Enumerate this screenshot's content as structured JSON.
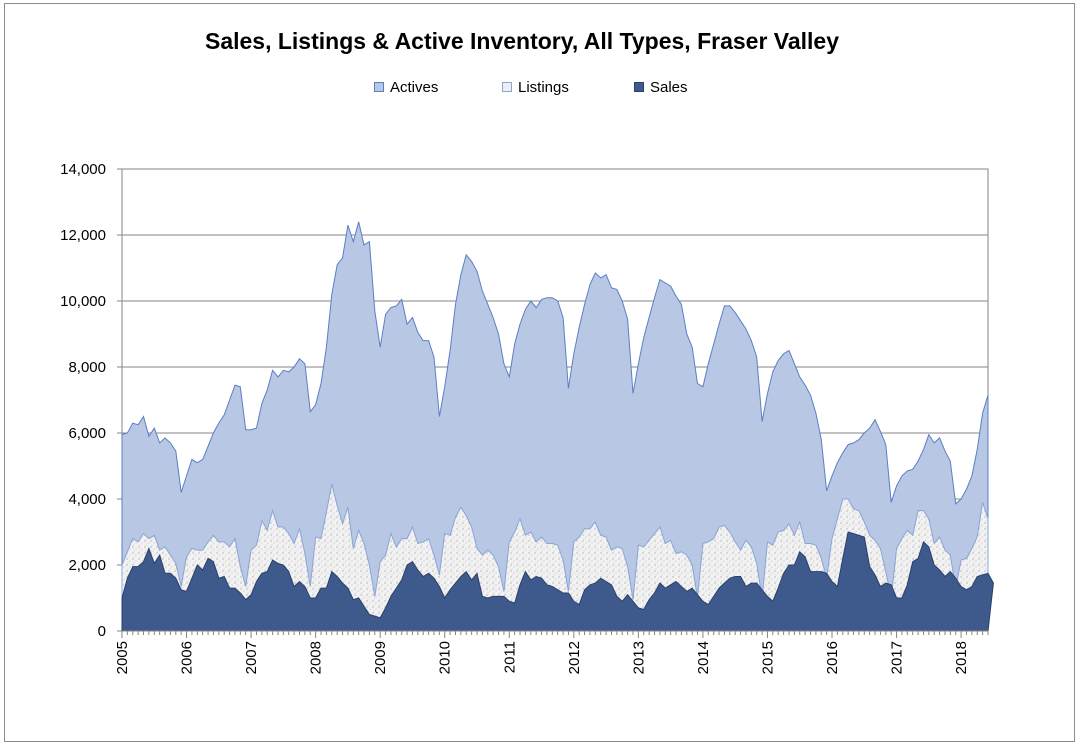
{
  "chart_data": {
    "type": "area",
    "title": "Sales, Listings & Active Inventory, All Types, Fraser Valley",
    "xlabel": "",
    "ylabel": "",
    "ylim": [
      0,
      14000
    ],
    "yticks": [
      "0",
      "2,000",
      "4,000",
      "6,000",
      "8,000",
      "10,000",
      "12,000",
      "14,000"
    ],
    "ytick_values": [
      0,
      2000,
      4000,
      6000,
      8000,
      10000,
      12000,
      14000
    ],
    "x_start": "2005-01",
    "x_end": "2018-06",
    "xticks": [
      "2005",
      "2006",
      "2007",
      "2008",
      "2009",
      "2010",
      "2011",
      "2012",
      "2013",
      "2014",
      "2015",
      "2016",
      "2017",
      "2018"
    ],
    "grid": "horizontal",
    "legend_position": "top",
    "legend": [
      {
        "key": "actives",
        "label": "Actives",
        "color": "#b8c7e4"
      },
      {
        "key": "listings",
        "label": "Listings",
        "color": "#eeeeee"
      },
      {
        "key": "sales",
        "label": "Sales",
        "color": "#3e5a8c"
      }
    ],
    "series": [
      {
        "name": "Actives",
        "color": "#b8c7e4",
        "stroke": "#5b7fc4",
        "values": [
          5950,
          6000,
          6300,
          6250,
          6500,
          5900,
          6150,
          5700,
          5850,
          5700,
          5450,
          4200,
          4700,
          5200,
          5100,
          5200,
          5600,
          6000,
          6300,
          6550,
          7000,
          7450,
          7400,
          6100,
          6100,
          6150,
          6900,
          7300,
          7900,
          7700,
          7900,
          7850,
          8000,
          8250,
          8100,
          6650,
          6850,
          7500,
          8600,
          10200,
          11100,
          11300,
          12300,
          11800,
          12400,
          11700,
          11800,
          9700,
          8600,
          9600,
          9800,
          9850,
          10050,
          9300,
          9500,
          9050,
          8800,
          8800,
          8300,
          6500,
          7400,
          8500,
          9900,
          10800,
          11400,
          11200,
          10900,
          10300,
          9900,
          9500,
          9000,
          8100,
          7700,
          8700,
          9300,
          9750,
          10000,
          9800,
          10050,
          10100,
          10100,
          10000,
          9500,
          7350,
          8400,
          9200,
          9900,
          10500,
          10850,
          10700,
          10800,
          10400,
          10350,
          10000,
          9450,
          7200,
          8100,
          8900,
          9500,
          10100,
          10650,
          10550,
          10450,
          10150,
          9900,
          9000,
          8600,
          7500,
          7400,
          8100,
          8700,
          9300,
          9850,
          9850,
          9650,
          9400,
          9150,
          8800,
          8300,
          6350,
          7200,
          7850,
          8200,
          8400,
          8500,
          8100,
          7700,
          7450,
          7150,
          6600,
          5800,
          4250,
          4700,
          5100,
          5400,
          5650,
          5700,
          5800,
          6000,
          6150,
          6400,
          6050,
          5650,
          3900,
          4400,
          4700,
          4850,
          4900,
          5150,
          5500,
          5950,
          5700,
          5850,
          5450,
          5150,
          3850,
          4000,
          4300,
          4700,
          5500,
          6600,
          7150
        ]
      },
      {
        "name": "Listings",
        "color": "#eeeeee",
        "stroke": "#8aa4d6",
        "values": [
          2000,
          2400,
          2800,
          2700,
          2950,
          2800,
          2900,
          2450,
          2550,
          2300,
          2050,
          1350,
          2250,
          2500,
          2450,
          2450,
          2700,
          2900,
          2700,
          2700,
          2550,
          2800,
          1950,
          1350,
          2450,
          2600,
          3350,
          3050,
          3650,
          3150,
          3150,
          2950,
          2650,
          3100,
          2350,
          1350,
          2850,
          2800,
          3600,
          4450,
          3800,
          3250,
          3750,
          2500,
          3050,
          2650,
          2000,
          1050,
          2100,
          2300,
          2950,
          2550,
          2800,
          2800,
          3150,
          2650,
          2700,
          2800,
          2300,
          1700,
          2950,
          2900,
          3450,
          3750,
          3500,
          3150,
          2500,
          2300,
          2450,
          2300,
          1950,
          1200,
          2700,
          3000,
          3400,
          2900,
          3000,
          2700,
          2850,
          2650,
          2650,
          2600,
          2150,
          1200,
          2700,
          2850,
          3100,
          3100,
          3300,
          2900,
          2850,
          2450,
          2550,
          2500,
          1950,
          950,
          2600,
          2550,
          2750,
          2950,
          3150,
          2650,
          2750,
          2350,
          2400,
          2300,
          2000,
          1000,
          2650,
          2700,
          2800,
          3150,
          3200,
          3000,
          2700,
          2450,
          2750,
          2550,
          2050,
          1000,
          2700,
          2600,
          3000,
          3050,
          3250,
          2900,
          3300,
          2650,
          2650,
          2600,
          2200,
          1600,
          2800,
          3400,
          4000,
          4000,
          3700,
          3650,
          3300,
          2900,
          2750,
          2500,
          1800,
          1000,
          2500,
          2800,
          3050,
          2900,
          3650,
          3650,
          3400,
          2650,
          2850,
          2450,
          2300,
          1300,
          2150,
          2200,
          2500,
          2850,
          3900,
          3400
        ]
      },
      {
        "name": "Sales",
        "color": "#3e5a8c",
        "stroke": "#2b3f69",
        "values": [
          1000,
          1600,
          1950,
          1950,
          2100,
          2500,
          2050,
          2300,
          1750,
          1750,
          1600,
          1250,
          1200,
          1600,
          2000,
          1850,
          2200,
          2100,
          1600,
          1650,
          1300,
          1300,
          1150,
          950,
          1100,
          1500,
          1750,
          1800,
          2150,
          2050,
          2000,
          1800,
          1350,
          1500,
          1350,
          1000,
          1000,
          1300,
          1300,
          1800,
          1650,
          1450,
          1300,
          950,
          1000,
          750,
          500,
          450,
          400,
          700,
          1050,
          1300,
          1550,
          2000,
          2100,
          1850,
          1650,
          1750,
          1600,
          1350,
          1000,
          1250,
          1450,
          1650,
          1800,
          1550,
          1750,
          1050,
          1000,
          1050,
          1050,
          1050,
          900,
          850,
          1400,
          1800,
          1550,
          1650,
          1600,
          1400,
          1350,
          1250,
          1150,
          1150,
          900,
          800,
          1250,
          1400,
          1450,
          1600,
          1500,
          1400,
          1050,
          900,
          1100,
          900,
          700,
          650,
          950,
          1150,
          1450,
          1300,
          1400,
          1500,
          1350,
          1200,
          1300,
          1100,
          900,
          800,
          1050,
          1300,
          1450,
          1600,
          1650,
          1650,
          1350,
          1450,
          1450,
          1250,
          1050,
          900,
          1300,
          1750,
          2000,
          2000,
          2400,
          2250,
          1800,
          1800,
          1800,
          1750,
          1500,
          1350,
          2200,
          3000,
          2950,
          2900,
          2850,
          1950,
          1700,
          1350,
          1450,
          1400,
          1000,
          1000,
          1400,
          2100,
          2200,
          2700,
          2550,
          2000,
          1850,
          1650,
          1800,
          1600,
          1350,
          1250,
          1350,
          1650,
          1700,
          1750,
          1450
        ]
      }
    ]
  }
}
